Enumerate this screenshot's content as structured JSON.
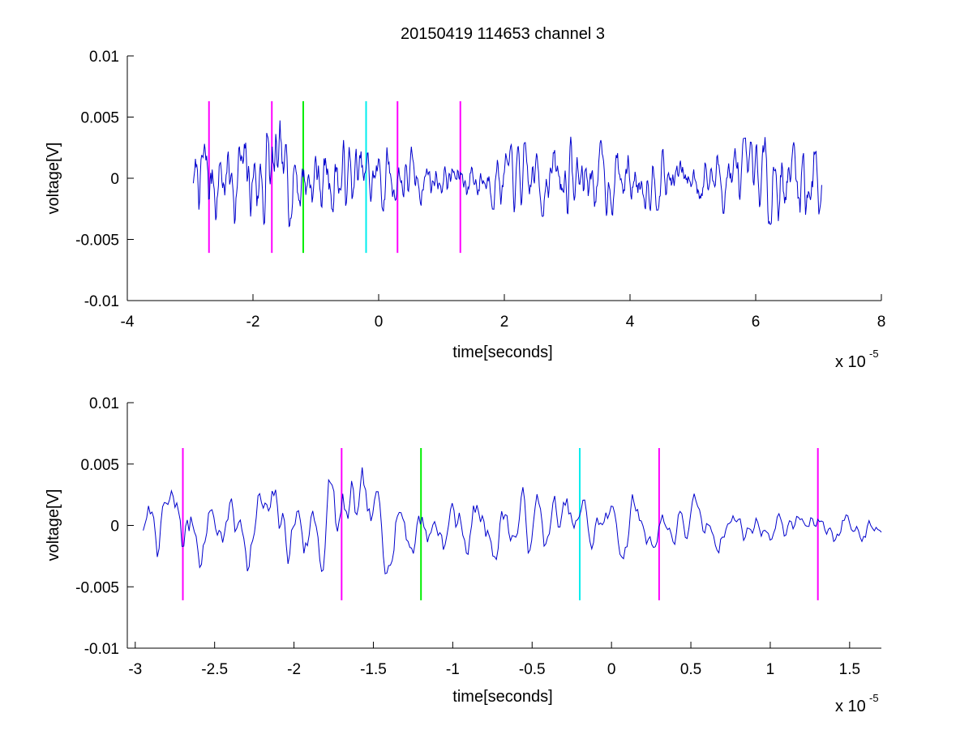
{
  "title": "20150419 114653 channel 3",
  "chart_data": [
    {
      "type": "line",
      "xlabel": "time[seconds]",
      "ylabel": "voltage[V]",
      "x_multiplier": "x 10",
      "x_exponent": "-5",
      "xlim": [
        -4,
        8
      ],
      "ylim": [
        -0.01,
        0.01
      ],
      "xticks": [
        -4,
        -2,
        0,
        2,
        4,
        6,
        8
      ],
      "xtick_labels": [
        "-4",
        "-2",
        "0",
        "2",
        "4",
        "6",
        "8"
      ],
      "yticks": [
        0.01,
        0.005,
        0,
        -0.005,
        -0.01
      ],
      "ytick_labels": [
        "0.01",
        "0.005",
        "0",
        "-0.005",
        "-0.01"
      ],
      "signal": {
        "color": "#0000cc",
        "x_start": -2.95,
        "x_end": 7.05,
        "seed": 7,
        "samples": 900,
        "envelope": [
          {
            "x": -2.95,
            "amp": 0.0012
          },
          {
            "x": -2.7,
            "amp": 0.003
          },
          {
            "x": -2.55,
            "amp": 0.0018
          },
          {
            "x": -1.75,
            "amp": 0.003
          },
          {
            "x": -1.4,
            "amp": 0.002
          },
          {
            "x": 0.2,
            "amp": 0.0016
          },
          {
            "x": 1.0,
            "amp": 0.001
          },
          {
            "x": 3.0,
            "amp": 0.0018
          },
          {
            "x": 5.0,
            "amp": 0.0012
          },
          {
            "x": 6.9,
            "amp": 0.0024
          },
          {
            "x": 7.05,
            "amp": 0.0014
          }
        ]
      },
      "markers": [
        {
          "x": -2.7,
          "color": "#ff00ff",
          "y_top": 0.0063,
          "y_bottom": -0.0061
        },
        {
          "x": -1.7,
          "color": "#ff00ff",
          "y_top": 0.0063,
          "y_bottom": -0.0061
        },
        {
          "x": -1.2,
          "color": "#00ee00",
          "y_top": 0.0063,
          "y_bottom": -0.0061
        },
        {
          "x": -0.2,
          "color": "#00eeee",
          "y_top": 0.0063,
          "y_bottom": -0.0061
        },
        {
          "x": 0.3,
          "color": "#ff00ff",
          "y_top": 0.0063,
          "y_bottom": -0.0061
        },
        {
          "x": 1.3,
          "color": "#ff00ff",
          "y_top": 0.0063,
          "y_bottom": -0.0061
        }
      ]
    },
    {
      "type": "line",
      "xlabel": "time[seconds]",
      "ylabel": "voltage[V]",
      "x_multiplier": "x 10",
      "x_exponent": "-5",
      "xlim": [
        -3.05,
        1.7
      ],
      "ylim": [
        -0.01,
        0.01
      ],
      "xticks": [
        -3,
        -2.5,
        -2,
        -1.5,
        -1,
        -0.5,
        0,
        0.5,
        1,
        1.5
      ],
      "xtick_labels": [
        "-3",
        "-2.5",
        "-2",
        "-1.5",
        "-1",
        "-0.5",
        "0",
        "0.5",
        "1",
        "1.5"
      ],
      "yticks": [
        0.01,
        0.005,
        0,
        -0.005,
        -0.01
      ],
      "ytick_labels": [
        "0.01",
        "0.005",
        "0",
        "-0.005",
        "-0.01"
      ],
      "signal": {
        "color": "#0000cc",
        "x_start": -2.95,
        "x_end": 1.7,
        "seed": 7,
        "samples": 419,
        "envelope": [
          {
            "x": -2.95,
            "amp": 0.0012
          },
          {
            "x": -2.7,
            "amp": 0.003
          },
          {
            "x": -2.55,
            "amp": 0.0018
          },
          {
            "x": -1.75,
            "amp": 0.003
          },
          {
            "x": -1.4,
            "amp": 0.002
          },
          {
            "x": 0.2,
            "amp": 0.0016
          },
          {
            "x": 1.0,
            "amp": 0.001
          },
          {
            "x": 1.7,
            "amp": 0.0012
          }
        ]
      },
      "markers": [
        {
          "x": -2.7,
          "color": "#ff00ff",
          "y_top": 0.0063,
          "y_bottom": -0.0061
        },
        {
          "x": -1.7,
          "color": "#ff00ff",
          "y_top": 0.0063,
          "y_bottom": -0.0061
        },
        {
          "x": -1.2,
          "color": "#00ee00",
          "y_top": 0.0063,
          "y_bottom": -0.0061
        },
        {
          "x": -0.2,
          "color": "#00eeee",
          "y_top": 0.0063,
          "y_bottom": -0.0061
        },
        {
          "x": 0.3,
          "color": "#ff00ff",
          "y_top": 0.0063,
          "y_bottom": -0.0061
        },
        {
          "x": 1.3,
          "color": "#ff00ff",
          "y_top": 0.0063,
          "y_bottom": -0.0061
        }
      ]
    }
  ]
}
